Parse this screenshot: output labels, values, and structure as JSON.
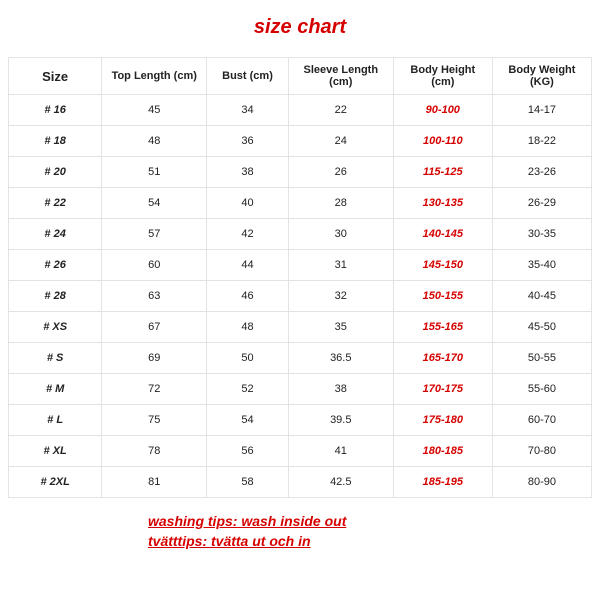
{
  "title": "size chart",
  "columns": [
    "Size",
    "Top Length (cm)",
    "Bust (cm)",
    "Sleeve Length (cm)",
    "Body Height (cm)",
    "Body Weight (KG)"
  ],
  "rows": [
    {
      "size": "# 16",
      "top": "45",
      "bust": "34",
      "sleeve": "22",
      "height": "90-100",
      "weight": "14-17"
    },
    {
      "size": "# 18",
      "top": "48",
      "bust": "36",
      "sleeve": "24",
      "height": "100-110",
      "weight": "18-22"
    },
    {
      "size": "# 20",
      "top": "51",
      "bust": "38",
      "sleeve": "26",
      "height": "115-125",
      "weight": "23-26"
    },
    {
      "size": "# 22",
      "top": "54",
      "bust": "40",
      "sleeve": "28",
      "height": "130-135",
      "weight": "26-29"
    },
    {
      "size": "# 24",
      "top": "57",
      "bust": "42",
      "sleeve": "30",
      "height": "140-145",
      "weight": "30-35"
    },
    {
      "size": "# 26",
      "top": "60",
      "bust": "44",
      "sleeve": "31",
      "height": "145-150",
      "weight": "35-40"
    },
    {
      "size": "# 28",
      "top": "63",
      "bust": "46",
      "sleeve": "32",
      "height": "150-155",
      "weight": "40-45"
    },
    {
      "size": "# XS",
      "top": "67",
      "bust": "48",
      "sleeve": "35",
      "height": "155-165",
      "weight": "45-50"
    },
    {
      "size": "# S",
      "top": "69",
      "bust": "50",
      "sleeve": "36.5",
      "height": "165-170",
      "weight": "50-55"
    },
    {
      "size": "# M",
      "top": "72",
      "bust": "52",
      "sleeve": "38",
      "height": "170-175",
      "weight": "55-60"
    },
    {
      "size": "# L",
      "top": "75",
      "bust": "54",
      "sleeve": "39.5",
      "height": "175-180",
      "weight": "60-70"
    },
    {
      "size": "# XL",
      "top": "78",
      "bust": "56",
      "sleeve": "41",
      "height": "180-185",
      "weight": "70-80"
    },
    {
      "size": "# 2XL",
      "top": "81",
      "bust": "58",
      "sleeve": "42.5",
      "height": "185-195",
      "weight": "80-90"
    }
  ],
  "tips": {
    "line1": "washing tips: wash inside out",
    "line2": "tvätttips: tvätta ut och in"
  },
  "colors": {
    "accent": "#d60000",
    "border": "#e3e3e3",
    "text": "#222222",
    "background": "#ffffff"
  }
}
